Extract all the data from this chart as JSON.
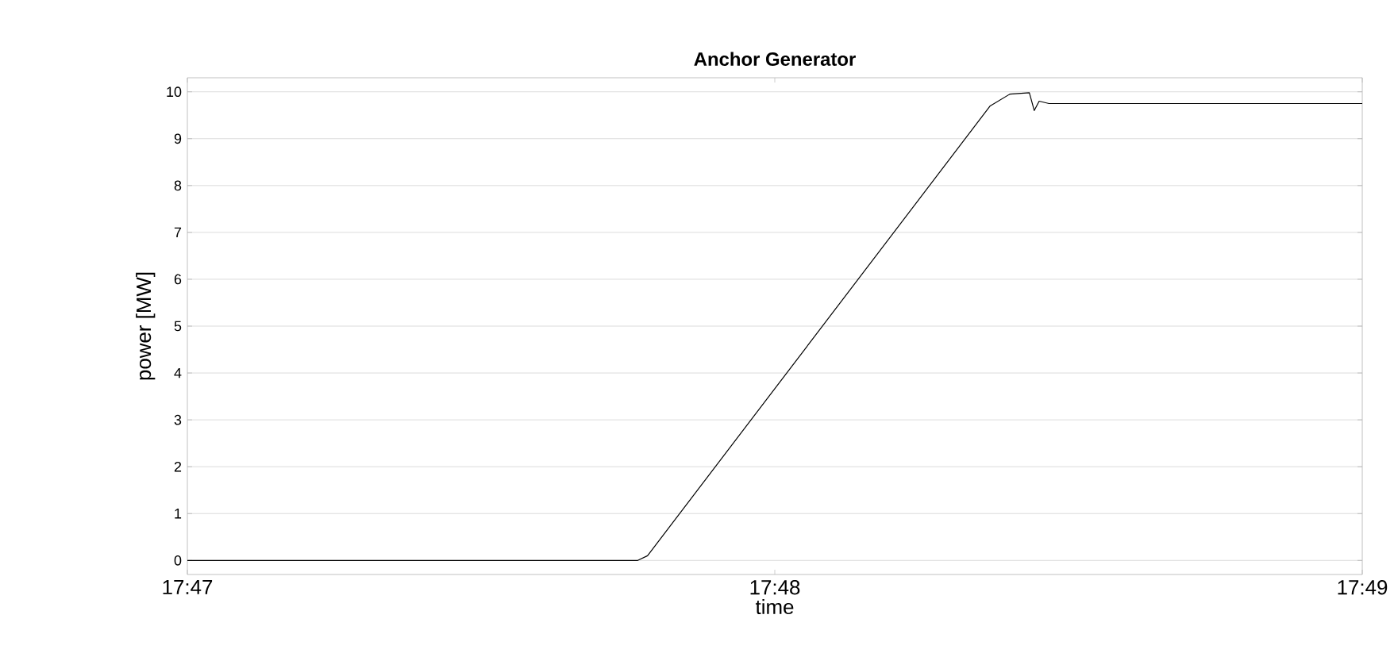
{
  "chart_data": {
    "type": "line",
    "title": "Anchor Generator",
    "xlabel": "time",
    "ylabel": "power [MW]",
    "x": [
      17.783333,
      17.796111,
      17.796389,
      17.806111,
      17.806667,
      17.807222,
      17.807361,
      17.8075,
      17.807778,
      17.816667
    ],
    "series": [
      {
        "color": "#000000",
        "values": [
          0,
          0,
          0.1,
          9.7,
          9.95,
          9.98,
          9.6,
          9.8,
          9.75,
          9.75
        ]
      }
    ],
    "xlim": [
      17.783333,
      17.816667
    ],
    "xticks": [
      {
        "value": 17.783333,
        "label": "17:47"
      },
      {
        "value": 17.8,
        "label": "17:48"
      },
      {
        "value": 17.816667,
        "label": "17:49"
      }
    ],
    "ylim": [
      -0.3,
      10.3
    ],
    "yticks": [
      0,
      1,
      2,
      3,
      4,
      5,
      6,
      7,
      8,
      9,
      10
    ],
    "grid": "y",
    "marker": "none",
    "line_style": "solid"
  }
}
